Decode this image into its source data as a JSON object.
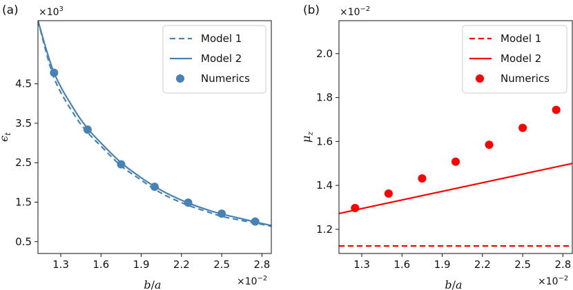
{
  "chart_data": [
    {
      "panel_label": "(a)",
      "type": "line",
      "x_sci": "×10",
      "x_sci_exp": "−2",
      "y_sci": "×10",
      "y_sci_exp": "3",
      "xlabel_main": "b",
      "xlabel_sep": "/",
      "xlabel_rest": "a",
      "ylabel_main": "ϵ",
      "ylabel_sub": "t",
      "xlim": [
        1.13,
        2.87
      ],
      "ylim": [
        0.2,
        6.1
      ],
      "xticks": [
        1.3,
        1.6,
        1.9,
        2.2,
        2.5,
        2.8
      ],
      "xtick_labels": [
        "1.3",
        "1.6",
        "1.9",
        "2.2",
        "2.5",
        "2.8"
      ],
      "yticks": [
        0.5,
        1.5,
        2.5,
        3.5,
        4.5
      ],
      "ytick_labels": [
        "0.5",
        "1.5",
        "2.5",
        "3.5",
        "4.5"
      ],
      "legend_position": "top-right",
      "color": "#4682b4",
      "series": [
        {
          "name": "Model 1",
          "style": "dashed",
          "x": [
            1.13,
            1.25,
            1.4,
            1.5,
            1.6,
            1.75,
            1.9,
            2.0,
            2.1,
            2.25,
            2.4,
            2.5,
            2.6,
            2.75,
            2.87
          ],
          "y": [
            6.1,
            4.65,
            3.72,
            3.27,
            2.92,
            2.42,
            2.06,
            1.83,
            1.64,
            1.42,
            1.25,
            1.14,
            1.07,
            0.97,
            0.89
          ]
        },
        {
          "name": "Model 2",
          "style": "solid",
          "x": [
            1.13,
            1.25,
            1.4,
            1.5,
            1.6,
            1.75,
            1.9,
            2.0,
            2.1,
            2.25,
            2.4,
            2.5,
            2.6,
            2.75,
            2.87
          ],
          "y": [
            6.1,
            4.78,
            3.85,
            3.37,
            3.0,
            2.5,
            2.12,
            1.9,
            1.71,
            1.48,
            1.3,
            1.2,
            1.12,
            1.0,
            0.91
          ]
        },
        {
          "name": "Numerics",
          "style": "markers",
          "x": [
            1.25,
            1.5,
            1.75,
            2.0,
            2.25,
            2.5,
            2.75
          ],
          "y": [
            4.78,
            3.34,
            2.46,
            1.89,
            1.49,
            1.21,
            1.01
          ]
        }
      ]
    },
    {
      "panel_label": "(b)",
      "type": "line",
      "x_sci": "×10",
      "x_sci_exp": "−2",
      "y_sci": "×10",
      "y_sci_exp": "−2",
      "xlabel_main": "b",
      "xlabel_sep": "/",
      "xlabel_rest": "a",
      "ylabel_main": "μ",
      "ylabel_sub": "z",
      "xlim": [
        1.13,
        2.87
      ],
      "ylim": [
        1.09,
        2.15
      ],
      "xticks": [
        1.3,
        1.6,
        1.9,
        2.2,
        2.5,
        2.8
      ],
      "xtick_labels": [
        "1.3",
        "1.6",
        "1.9",
        "2.2",
        "2.5",
        "2.8"
      ],
      "yticks": [
        1.2,
        1.4,
        1.6,
        1.8,
        2.0
      ],
      "ytick_labels": [
        "1.2",
        "1.4",
        "1.6",
        "1.8",
        "2.0"
      ],
      "legend_position": "top-right",
      "color": "#ff0000",
      "series": [
        {
          "name": "Model 1",
          "style": "dashed",
          "x": [
            1.13,
            2.87
          ],
          "y": [
            1.124,
            1.124
          ]
        },
        {
          "name": "Model 2",
          "style": "solid",
          "x": [
            1.13,
            2.87
          ],
          "y": [
            1.272,
            1.5
          ]
        },
        {
          "name": "Numerics",
          "style": "markers",
          "x": [
            1.25,
            1.5,
            1.75,
            2.0,
            2.25,
            2.5,
            2.75
          ],
          "y": [
            1.297,
            1.363,
            1.432,
            1.508,
            1.585,
            1.662,
            1.744
          ]
        }
      ]
    }
  ]
}
